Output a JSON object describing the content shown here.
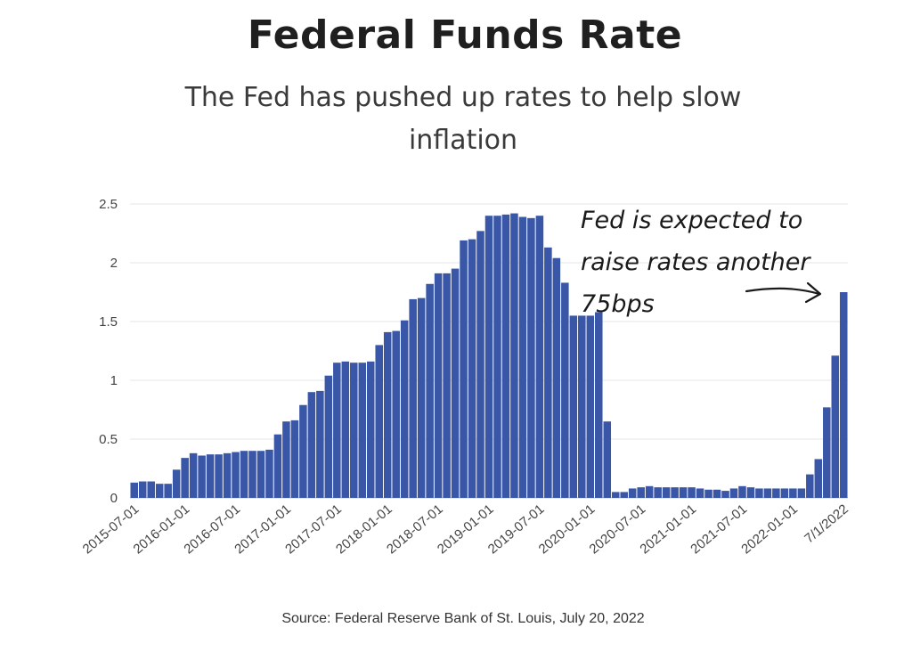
{
  "header": {
    "title": "Federal Funds Rate",
    "subtitle": "The Fed has pushed up rates to help slow inflation"
  },
  "annotation": {
    "text": "Fed is expected to raise rates another 75bps"
  },
  "source": "Source: Federal Reserve Bank of St. Louis, July 20, 2022",
  "colors": {
    "bar": "#3a57a7",
    "grid": "#e6e6e6",
    "axis_text": "#444444"
  },
  "chart_data": {
    "type": "bar",
    "title": "Federal Funds Rate",
    "subtitle": "The Fed has pushed up rates to help slow inflation",
    "xlabel": "",
    "ylabel": "",
    "ylim": [
      0,
      2.5
    ],
    "yticks": [
      0,
      0.5,
      1,
      1.5,
      2,
      2.5
    ],
    "ytick_labels": [
      "0",
      "0.5",
      "1",
      "1.5",
      "2",
      "2.5"
    ],
    "grid": true,
    "legend": "none",
    "tick_labels": [
      {
        "label": "2015-07-01",
        "category": "2015-07"
      },
      {
        "label": "2016-01-01",
        "category": "2016-01"
      },
      {
        "label": "2016-07-01",
        "category": "2016-07"
      },
      {
        "label": "2017-01-01",
        "category": "2017-01"
      },
      {
        "label": "2017-07-01",
        "category": "2017-07"
      },
      {
        "label": "2018-01-01",
        "category": "2018-01"
      },
      {
        "label": "2018-07-01",
        "category": "2018-07"
      },
      {
        "label": "2019-01-01",
        "category": "2019-01"
      },
      {
        "label": "2019-07-01",
        "category": "2019-07"
      },
      {
        "label": "2020-01-01",
        "category": "2020-01"
      },
      {
        "label": "2020-07-01",
        "category": "2020-07"
      },
      {
        "label": "2021-01-01",
        "category": "2021-01"
      },
      {
        "label": "2021-07-01",
        "category": "2021-07"
      },
      {
        "label": "2022-01-01",
        "category": "2022-01"
      },
      {
        "label": "7/1/2022",
        "category": "2022-07"
      }
    ],
    "categories": [
      "2015-07",
      "2015-08",
      "2015-09",
      "2015-10",
      "2015-11",
      "2015-12",
      "2016-01",
      "2016-02",
      "2016-03",
      "2016-04",
      "2016-05",
      "2016-06",
      "2016-07",
      "2016-08",
      "2016-09",
      "2016-10",
      "2016-11",
      "2016-12",
      "2017-01",
      "2017-02",
      "2017-03",
      "2017-04",
      "2017-05",
      "2017-06",
      "2017-07",
      "2017-08",
      "2017-09",
      "2017-10",
      "2017-11",
      "2017-12",
      "2018-01",
      "2018-02",
      "2018-03",
      "2018-04",
      "2018-05",
      "2018-06",
      "2018-07",
      "2018-08",
      "2018-09",
      "2018-10",
      "2018-11",
      "2018-12",
      "2019-01",
      "2019-02",
      "2019-03",
      "2019-04",
      "2019-05",
      "2019-06",
      "2019-07",
      "2019-08",
      "2019-09",
      "2019-10",
      "2019-11",
      "2019-12",
      "2020-01",
      "2020-02",
      "2020-03",
      "2020-04",
      "2020-05",
      "2020-06",
      "2020-07",
      "2020-08",
      "2020-09",
      "2020-10",
      "2020-11",
      "2020-12",
      "2021-01",
      "2021-02",
      "2021-03",
      "2021-04",
      "2021-05",
      "2021-06",
      "2021-07",
      "2021-08",
      "2021-09",
      "2021-10",
      "2021-11",
      "2021-12",
      "2022-01",
      "2022-02",
      "2022-03",
      "2022-04",
      "2022-05",
      "2022-06",
      "2022-07"
    ],
    "values": [
      0.13,
      0.14,
      0.14,
      0.12,
      0.12,
      0.24,
      0.34,
      0.38,
      0.36,
      0.37,
      0.37,
      0.38,
      0.39,
      0.4,
      0.4,
      0.4,
      0.41,
      0.54,
      0.65,
      0.66,
      0.79,
      0.9,
      0.91,
      1.04,
      1.15,
      1.16,
      1.15,
      1.15,
      1.16,
      1.3,
      1.41,
      1.42,
      1.51,
      1.69,
      1.7,
      1.82,
      1.91,
      1.91,
      1.95,
      2.19,
      2.2,
      2.27,
      2.4,
      2.4,
      2.41,
      2.42,
      2.39,
      2.38,
      2.4,
      2.13,
      2.04,
      1.83,
      1.55,
      1.55,
      1.55,
      1.58,
      0.65,
      0.05,
      0.05,
      0.08,
      0.09,
      0.1,
      0.09,
      0.09,
      0.09,
      0.09,
      0.09,
      0.08,
      0.07,
      0.07,
      0.06,
      0.08,
      0.1,
      0.09,
      0.08,
      0.08,
      0.08,
      0.08,
      0.08,
      0.08,
      0.2,
      0.33,
      0.77,
      1.21,
      1.75
    ]
  }
}
